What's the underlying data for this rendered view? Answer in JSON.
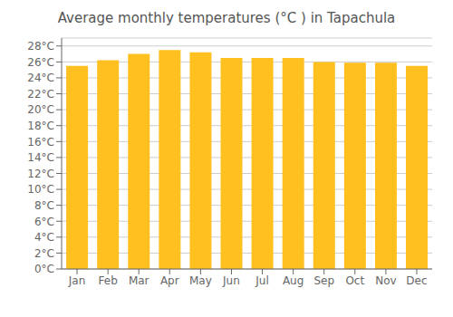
{
  "chart_data": {
    "type": "bar",
    "title": "Average monthly temperatures (°C ) in Tapachula",
    "categories": [
      "Jan",
      "Feb",
      "Mar",
      "Apr",
      "May",
      "Jun",
      "Jul",
      "Aug",
      "Sep",
      "Oct",
      "Nov",
      "Dec"
    ],
    "values": [
      25.5,
      26.2,
      27.0,
      27.5,
      27.2,
      26.5,
      26.5,
      26.5,
      26.0,
      25.9,
      25.9,
      25.5
    ],
    "color": "#FFC020",
    "ylim": [
      0,
      29
    ],
    "yticks": [
      {
        "value": 0,
        "label": "0°C"
      },
      {
        "value": 2,
        "label": "2°C"
      },
      {
        "value": 4,
        "label": "4°C"
      },
      {
        "value": 6,
        "label": "6°C"
      },
      {
        "value": 8,
        "label": "8°C"
      },
      {
        "value": 10,
        "label": "10°C"
      },
      {
        "value": 12,
        "label": "12°C"
      },
      {
        "value": 14,
        "label": "14°C"
      },
      {
        "value": 16,
        "label": "16°C"
      },
      {
        "value": 18,
        "label": "18°C"
      },
      {
        "value": 20,
        "label": "20°C"
      },
      {
        "value": 22,
        "label": "22°C"
      },
      {
        "value": 24,
        "label": "24°C"
      },
      {
        "value": 26,
        "label": "26°C"
      },
      {
        "value": 28,
        "label": "28°C"
      }
    ],
    "grid": true
  }
}
